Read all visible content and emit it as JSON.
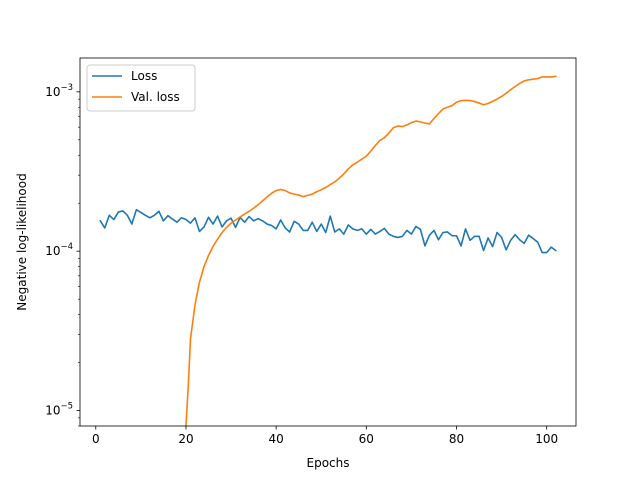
{
  "chart_data": {
    "type": "line",
    "xlabel": "Epochs",
    "ylabel": "Negative log-likelihood",
    "xlim": [
      -3.5,
      106.5
    ],
    "ylim": [
      8e-06,
      0.00163
    ],
    "yscale": "log",
    "x_ticks": [
      0,
      20,
      40,
      60,
      80,
      100
    ],
    "x_tick_labels": [
      "0",
      "20",
      "40",
      "60",
      "80",
      "100"
    ],
    "y_ticks": [
      1e-05,
      0.0001,
      0.001
    ],
    "y_tick_labels": [
      "10",
      "10",
      "10"
    ],
    "y_tick_exponents": [
      "−5",
      "−4",
      "−3"
    ],
    "grid": false,
    "legend_position": "top-left",
    "legend": [
      "Loss",
      "Val. loss"
    ],
    "series": [
      {
        "name": "Loss",
        "color": "#1f77b4",
        "x": [
          1,
          2,
          3,
          4,
          5,
          6,
          7,
          8,
          9,
          10,
          11,
          12,
          13,
          14,
          15,
          16,
          17,
          18,
          19,
          20,
          21,
          22,
          23,
          24,
          25,
          26,
          27,
          28,
          29,
          30,
          31,
          32,
          33,
          34,
          35,
          36,
          37,
          38,
          39,
          40,
          41,
          42,
          43,
          44,
          45,
          46,
          47,
          48,
          49,
          50,
          51,
          52,
          53,
          54,
          55,
          56,
          57,
          58,
          59,
          60,
          61,
          62,
          63,
          64,
          65,
          66,
          67,
          68,
          69,
          70,
          71,
          72,
          73,
          74,
          75,
          76,
          77,
          78,
          79,
          80,
          81,
          82,
          83,
          84,
          85,
          86,
          87,
          88,
          89,
          90,
          91,
          92,
          93,
          94,
          95,
          96,
          97,
          98,
          99,
          100,
          101,
          102
        ],
        "y": [
          0.000155,
          0.00014,
          0.000168,
          0.000158,
          0.000176,
          0.000179,
          0.000168,
          0.000148,
          0.000182,
          0.000175,
          0.000168,
          0.000162,
          0.000168,
          0.000178,
          0.000155,
          0.000167,
          0.000159,
          0.000152,
          0.000162,
          0.000158,
          0.00015,
          0.000162,
          0.000133,
          0.000142,
          0.000163,
          0.000148,
          0.000166,
          0.000142,
          0.000155,
          0.000161,
          0.000141,
          0.000163,
          0.000152,
          0.000165,
          0.000155,
          0.00016,
          0.000155,
          0.000148,
          0.000145,
          0.000138,
          0.000157,
          0.00014,
          0.000132,
          0.000154,
          0.000148,
          0.000135,
          0.000135,
          0.000152,
          0.000133,
          0.000148,
          0.000131,
          0.000166,
          0.000132,
          0.000138,
          0.000128,
          0.000146,
          0.000138,
          0.000135,
          0.000138,
          0.000128,
          0.000137,
          0.000128,
          0.000133,
          0.000139,
          0.000128,
          0.000124,
          0.000122,
          0.000124,
          0.000135,
          0.000128,
          0.000143,
          0.000137,
          0.000108,
          0.000126,
          0.000135,
          0.000118,
          0.000131,
          0.000132,
          0.000125,
          0.000125,
          0.000108,
          0.000138,
          0.000117,
          0.000124,
          0.000124,
          0.000101,
          0.000121,
          0.000107,
          0.000131,
          0.000122,
          0.000102,
          0.000117,
          0.000127,
          0.000118,
          0.000112,
          0.000126,
          0.00012,
          0.000114,
          9.8e-05,
          9.8e-05,
          0.000106,
          0.000101
        ]
      },
      {
        "name": "Val. loss",
        "color": "#ff7f0e",
        "x": [
          20,
          20.5,
          21,
          22,
          23,
          24,
          25,
          26,
          27,
          28,
          29,
          30,
          31,
          32,
          33,
          34,
          35,
          36,
          37,
          38,
          39,
          40,
          41,
          42,
          43,
          44,
          45,
          46,
          47,
          48,
          49,
          50,
          51,
          52,
          53,
          54,
          55,
          56,
          57,
          58,
          59,
          60,
          61,
          62,
          63,
          64,
          65,
          66,
          67,
          68,
          69,
          70,
          71,
          72,
          73,
          74,
          75,
          76,
          77,
          78,
          79,
          80,
          81,
          82,
          83,
          84,
          85,
          86,
          87,
          88,
          89,
          90,
          91,
          92,
          93,
          94,
          95,
          96,
          97,
          98,
          99,
          100,
          101,
          102
        ],
        "y": [
          8e-06,
          1.4e-05,
          2.8e-05,
          4.6e-05,
          6.4e-05,
          8e-05,
          9.4e-05,
          0.000107,
          0.000119,
          0.000131,
          0.000141,
          0.00015,
          0.000157,
          0.000164,
          0.000171,
          0.000178,
          0.000186,
          0.000196,
          0.000207,
          0.000219,
          0.000231,
          0.00024,
          0.000244,
          0.00024,
          0.000232,
          0.000228,
          0.000225,
          0.00022,
          0.000224,
          0.000228,
          0.000236,
          0.000243,
          0.000251,
          0.000262,
          0.000272,
          0.000287,
          0.000305,
          0.000328,
          0.000348,
          0.000362,
          0.000378,
          0.000395,
          0.000425,
          0.00046,
          0.000495,
          0.000515,
          0.00055,
          0.000595,
          0.00061,
          0.000605,
          0.00062,
          0.00064,
          0.000655,
          0.000648,
          0.000636,
          0.00063,
          0.00068,
          0.00073,
          0.00078,
          0.0008,
          0.00082,
          0.00086,
          0.00088,
          0.000885,
          0.00088,
          0.00087,
          0.00085,
          0.00083,
          0.000845,
          0.00087,
          0.0009,
          0.000935,
          0.00098,
          0.00103,
          0.00108,
          0.00113,
          0.00117,
          0.00119,
          0.0012,
          0.00121,
          0.00124,
          0.00124,
          0.00124,
          0.00125
        ]
      }
    ]
  }
}
